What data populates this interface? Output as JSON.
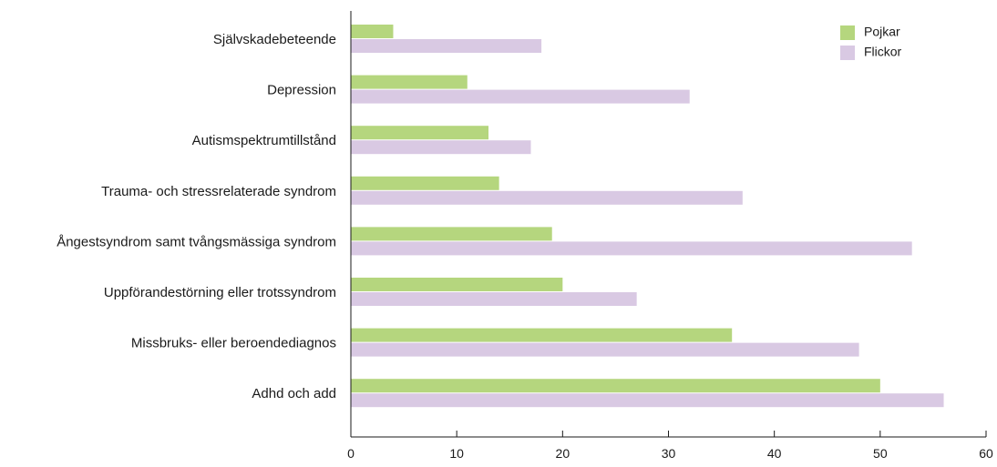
{
  "chart_data": {
    "type": "bar",
    "orientation": "horizontal",
    "categories": [
      "Självskadebeteende",
      "Depression",
      "Autismspektrumtillstånd",
      "Trauma- och stressrelaterade syndrom",
      "Ångestsyndrom samt tvångsmässiga syndrom",
      "Uppförandestörning eller trotssyndrom",
      "Missbruks- eller beroendediagnos",
      "Adhd och add"
    ],
    "series": [
      {
        "name": "Pojkar",
        "color": "#b5d67e",
        "values": [
          4,
          11,
          13,
          14,
          19,
          20,
          36,
          50
        ]
      },
      {
        "name": "Flickor",
        "color": "#d9c9e3",
        "values": [
          18,
          32,
          17,
          37,
          53,
          27,
          48,
          56
        ]
      }
    ],
    "xlim": [
      0,
      60
    ],
    "xticks": [
      0,
      10,
      20,
      30,
      40,
      50,
      60
    ],
    "title": "",
    "xlabel": "",
    "ylabel": "",
    "legend_position": "top-right",
    "grid": false
  }
}
